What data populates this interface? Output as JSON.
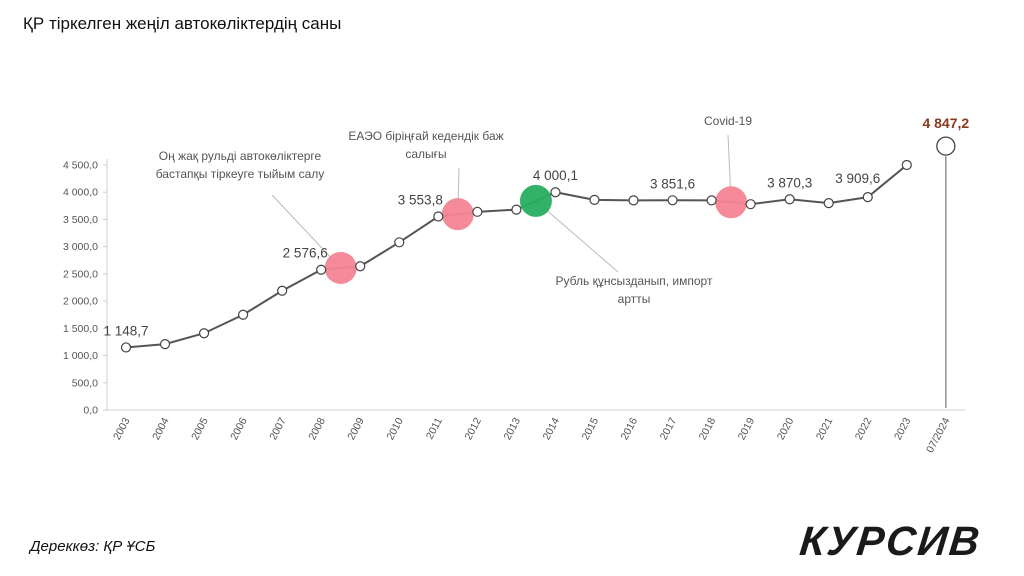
{
  "page": {
    "title": "ҚР тіркелген жеңіл автокөліктердің саны",
    "source": "Дереккөз: ҚР ҰСБ",
    "logo": "КУРСИВ"
  },
  "colors": {
    "line": "#555555",
    "axis": "#d0d0d0",
    "text": "#555555",
    "pink": "#f48494",
    "green": "#27ae60",
    "highlight": "#8b3a1e"
  },
  "chart_data": {
    "type": "line",
    "title": "ҚР тіркелген жеңіл автокөліктердің саны",
    "ylim": [
      0,
      4500
    ],
    "y_ticks": [
      "0,0",
      "500,0",
      "1 000,0",
      "1 500,0",
      "2 000,0",
      "2 500,0",
      "3 000,0",
      "3 500,0",
      "4 000,0",
      "4 500,0"
    ],
    "y_tick_values": [
      0,
      500,
      1000,
      1500,
      2000,
      2500,
      3000,
      3500,
      4000,
      4500
    ],
    "categories": [
      "2003",
      "2004",
      "2005",
      "2006",
      "2007",
      "2008",
      "2009",
      "2010",
      "2011",
      "2012",
      "2013",
      "2014",
      "2015",
      "2016",
      "2017",
      "2018",
      "2019",
      "2020",
      "2021",
      "2022",
      "2023",
      "07/2024"
    ],
    "series": [
      {
        "values": [
          1148.7,
          1210,
          1410,
          1750,
          2190,
          2576.6,
          2640,
          3080,
          3553.8,
          3640,
          3680,
          4000.1,
          3860,
          3850,
          3851.6,
          3850,
          3780,
          3870.3,
          3800,
          3909.6,
          4500,
          4847.2
        ]
      }
    ],
    "data_labels": [
      {
        "index": 0,
        "text": "1 148,7"
      },
      {
        "index": 5,
        "text": "2 576,6"
      },
      {
        "index": 8,
        "text": "3 553,8"
      },
      {
        "index": 11,
        "text": "4 000,1"
      },
      {
        "index": 14,
        "text": "3 851,6"
      },
      {
        "index": 17,
        "text": "3 870,3"
      },
      {
        "index": 19,
        "text": "3 909,6"
      },
      {
        "index": 21,
        "text": "4 847,2"
      }
    ],
    "events": [
      {
        "position": 5.5,
        "color": "pink",
        "label": [
          "Оң жақ рульді автокөліктерге",
          "бастапқы тіркеуге тыйым салу"
        ]
      },
      {
        "position": 8.5,
        "color": "pink",
        "label": [
          "ЕАЭО біріңғай кедендік баж",
          "салығы"
        ]
      },
      {
        "position": 10.5,
        "color": "green",
        "label": [
          "Рубль құнсызданып, импорт",
          "артты"
        ]
      },
      {
        "position": 15.5,
        "color": "pink",
        "label": [
          "Covid-19"
        ]
      }
    ]
  }
}
